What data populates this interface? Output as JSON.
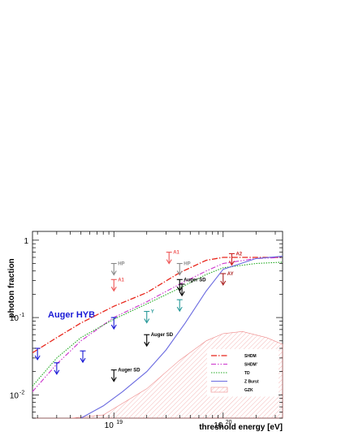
{
  "chart_data": {
    "type": "line",
    "xlabel": "threshold energy  [eV]",
    "ylabel": "photon fraction",
    "xscale": "log",
    "yscale": "log",
    "xlim": [
      1.8e+18,
      3.5e+20
    ],
    "ylim": [
      0.005,
      1.3
    ],
    "x_ticks": [
      {
        "value": 1e+19,
        "label": "10",
        "exp": "19"
      },
      {
        "value": 1e+20,
        "label": "10",
        "exp": "20"
      }
    ],
    "y_ticks": [
      {
        "value": 0.01,
        "label": "10",
        "exp": "-2"
      },
      {
        "value": 0.1,
        "label": "10",
        "exp": "-1"
      },
      {
        "value": 1,
        "label": "1",
        "exp": ""
      }
    ],
    "annotation": {
      "text": "Auger HYB",
      "color": "#1a1ad6"
    },
    "series": [
      {
        "name": "SHDM",
        "color": "#e8251a",
        "dash": "7,2,1.5,2",
        "width": 1.3,
        "x": [
          1.8e+18,
          3e+18,
          5e+18,
          1e+19,
          2e+19,
          4e+19,
          7e+19,
          1e+20,
          2e+20,
          3.5e+20
        ],
        "y": [
          0.035,
          0.055,
          0.085,
          0.14,
          0.21,
          0.38,
          0.55,
          0.6,
          0.6,
          0.6
        ]
      },
      {
        "name": "SHDM'",
        "color": "#cc33cc",
        "dash": "6,2,1.5,2,1.5,2",
        "width": 1.1,
        "x": [
          1.8e+18,
          3e+18,
          5e+18,
          1e+19,
          2e+19,
          4e+19,
          7e+19,
          1e+20,
          2e+20,
          3.5e+20
        ],
        "y": [
          0.011,
          0.025,
          0.05,
          0.1,
          0.16,
          0.27,
          0.4,
          0.5,
          0.58,
          0.6
        ]
      },
      {
        "name": "TD",
        "color": "#22aa22",
        "dash": "1.5,1.5",
        "width": 1.1,
        "x": [
          1.8e+18,
          3e+18,
          5e+18,
          1e+19,
          2e+19,
          4e+19,
          7e+19,
          1e+20,
          2e+20,
          3.5e+20
        ],
        "y": [
          0.013,
          0.03,
          0.055,
          0.095,
          0.15,
          0.24,
          0.36,
          0.44,
          0.5,
          0.52
        ]
      },
      {
        "name": "Z Burst",
        "color": "#6a6ae0",
        "dash": "",
        "width": 1.1,
        "x": [
          5e+18,
          8e+18,
          1.2e+19,
          2e+19,
          3e+19,
          4.5e+19,
          7e+19,
          1e+20,
          2e+20,
          3.5e+20
        ],
        "y": [
          0.005,
          0.0072,
          0.011,
          0.02,
          0.038,
          0.085,
          0.22,
          0.42,
          0.58,
          0.62
        ]
      },
      {
        "name": "GZK",
        "color": "#ee8888",
        "dash": "",
        "width": 0.6,
        "band": true,
        "x": [
          1.8e+18,
          4e+18,
          8e+18,
          2e+19,
          4e+19,
          7e+19,
          1e+20,
          1.5e+20,
          2.5e+20,
          3.5e+20
        ],
        "y_low": [
          0.005,
          0.005,
          0.005,
          0.005,
          0.005,
          0.005,
          0.005,
          0.005,
          0.005,
          0.005
        ],
        "y_high": [
          0.005,
          0.005,
          0.0055,
          0.012,
          0.028,
          0.05,
          0.062,
          0.066,
          0.055,
          0.045
        ]
      }
    ],
    "limits": [
      {
        "x": 2e+18,
        "y": 0.04,
        "label": "",
        "color": "#1a1ad6"
      },
      {
        "x": 3e+18,
        "y": 0.026,
        "label": "",
        "color": "#1a1ad6"
      },
      {
        "x": 5.2e+18,
        "y": 0.037,
        "label": "",
        "color": "#1a1ad6"
      },
      {
        "x": 1e+19,
        "y": 0.1,
        "label": "",
        "color": "#1a1ad6"
      },
      {
        "x": 1e+19,
        "y": 0.021,
        "label": "Auger SD",
        "color": "#000000"
      },
      {
        "x": 2e+19,
        "y": 0.06,
        "label": "Auger SD",
        "color": "#000000"
      },
      {
        "x": 4e+19,
        "y": 0.31,
        "label": "Auger SD",
        "color": "#000000"
      },
      {
        "x": 4.2e+19,
        "y": 0.27,
        "label": "",
        "color": "#000000"
      },
      {
        "x": 2e+19,
        "y": 0.12,
        "label": "Y",
        "color": "#2a9a9a"
      },
      {
        "x": 4e+19,
        "y": 0.17,
        "label": "",
        "color": "#2a9a9a"
      },
      {
        "x": 1e+19,
        "y": 0.5,
        "label": "HP",
        "color": "#888888"
      },
      {
        "x": 4e+19,
        "y": 0.5,
        "label": "HP",
        "color": "#888888"
      },
      {
        "x": 1e+19,
        "y": 0.31,
        "label": "A1",
        "color": "#ee5555"
      },
      {
        "x": 3.2e+19,
        "y": 0.7,
        "label": "A1",
        "color": "#ee5555"
      },
      {
        "x": 1.2e+20,
        "y": 0.67,
        "label": "A2",
        "color": "#cc2222"
      },
      {
        "x": 1e+20,
        "y": 0.37,
        "label": "AY",
        "color": "#aa2222"
      }
    ],
    "legend": {
      "position": "bottom-right"
    }
  }
}
